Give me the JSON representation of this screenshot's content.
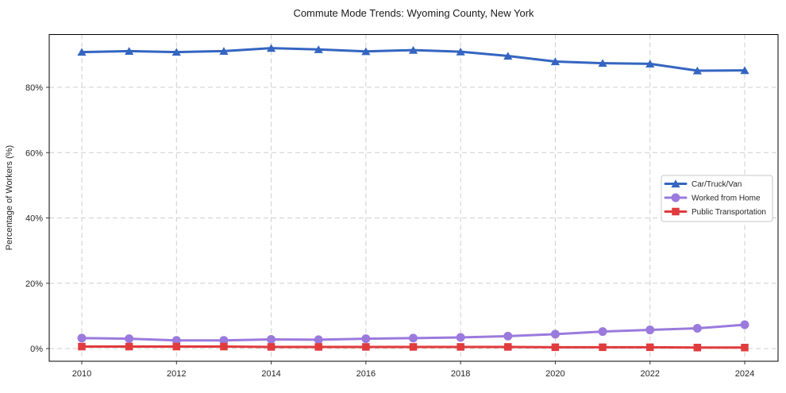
{
  "chart_data": {
    "type": "line",
    "title": "Commute Mode Trends: Wyoming County, New York",
    "xlabel": "",
    "ylabel": "Percentage of Workers (%)",
    "x": [
      2010,
      2011,
      2012,
      2013,
      2014,
      2015,
      2016,
      2017,
      2018,
      2019,
      2020,
      2021,
      2022,
      2023,
      2024
    ],
    "series": [
      {
        "name": "Car/Truck/Van",
        "color": "#3465c1",
        "marker": "triangle",
        "values": [
          90.8,
          91.1,
          90.8,
          91.1,
          92.0,
          91.6,
          91.0,
          91.4,
          90.9,
          89.6,
          87.9,
          87.4,
          87.2,
          85.1,
          85.2
        ]
      },
      {
        "name": "Worked from Home",
        "color": "#9b7add",
        "marker": "circle",
        "values": [
          3.2,
          3.0,
          2.5,
          2.5,
          2.8,
          2.7,
          3.0,
          3.2,
          3.4,
          3.8,
          4.4,
          5.2,
          5.7,
          6.2,
          7.3
        ]
      },
      {
        "name": "Public Transportation",
        "color": "#e03b3d",
        "marker": "square",
        "values": [
          0.6,
          0.6,
          0.6,
          0.6,
          0.5,
          0.5,
          0.5,
          0.5,
          0.5,
          0.5,
          0.4,
          0.4,
          0.4,
          0.3,
          0.3
        ]
      }
    ],
    "xticks": [
      2010,
      2012,
      2014,
      2016,
      2018,
      2020,
      2022,
      2024
    ],
    "xtick_labels": [
      "2010",
      "2012",
      "2014",
      "2016",
      "2018",
      "2020",
      "2022",
      "2024"
    ],
    "yticks": [
      0,
      20,
      40,
      60,
      80
    ],
    "ytick_labels": [
      "0%",
      "20%",
      "40%",
      "60%",
      "80%"
    ],
    "ylim": [
      -3.9,
      96.3
    ],
    "grid": true,
    "grid_style": "dashed",
    "legend_position": "center right",
    "colors": {
      "grid": "#cfcfcf",
      "spine": "#000000",
      "tick": "#333333",
      "legend_border": "#c9c9c9",
      "background": "#ffffff"
    }
  }
}
